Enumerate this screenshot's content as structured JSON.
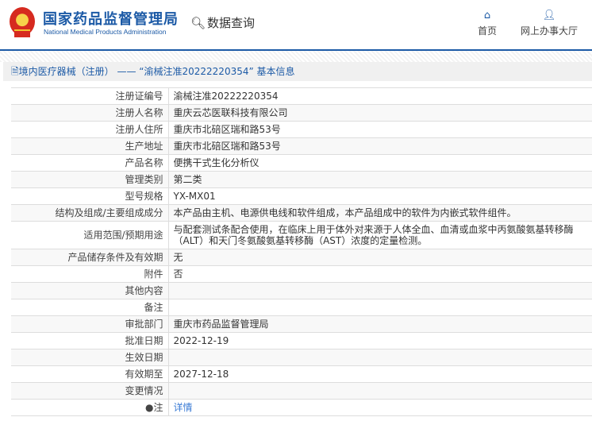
{
  "header": {
    "brand_cn": "国家药品监督管理局",
    "brand_en": "National Medical Products Administration",
    "data_query": "数据查询",
    "nav": [
      {
        "label": "首页",
        "icon": "home-icon"
      },
      {
        "label": "网上办事大厅",
        "icon": "user-icon"
      }
    ]
  },
  "page": {
    "title": "境内医疗器械（注册） —— “渝械注准20222220354” 基本信息"
  },
  "rows": [
    {
      "label": "注册证编号",
      "value": "渝械注准20222220354"
    },
    {
      "label": "注册人名称",
      "value": "重庆云芯医联科技有限公司"
    },
    {
      "label": "注册人住所",
      "value": "重庆市北碚区瑞和路53号"
    },
    {
      "label": "生产地址",
      "value": "重庆市北碚区瑞和路53号"
    },
    {
      "label": "产品名称",
      "value": "便携干式生化分析仪"
    },
    {
      "label": "管理类别",
      "value": "第二类"
    },
    {
      "label": "型号规格",
      "value": "YX-MX01"
    },
    {
      "label": "结构及组成/主要组成成分",
      "value": "本产品由主机、电源供电线和软件组成，本产品组成中的软件为内嵌式软件组件。"
    },
    {
      "label": "适用范围/预期用途",
      "value": "与配套测试条配合使用，在临床上用于体外对来源于人体全血、血清或血浆中丙氨酸氨基转移酶（ALT）和天门冬氨酸氨基转移酶（AST）浓度的定量检测。"
    },
    {
      "label": "产品储存条件及有效期",
      "value": "无"
    },
    {
      "label": "附件",
      "value": "否"
    },
    {
      "label": "其他内容",
      "value": ""
    },
    {
      "label": "备注",
      "value": ""
    },
    {
      "label": "审批部门",
      "value": "重庆市药品监督管理局"
    },
    {
      "label": "批准日期",
      "value": "2022-12-19"
    },
    {
      "label": "生效日期",
      "value": ""
    },
    {
      "label": "有效期至",
      "value": "2027-12-18"
    },
    {
      "label": "变更情况",
      "value": ""
    }
  ],
  "note": {
    "label": "注",
    "link": "详情"
  }
}
